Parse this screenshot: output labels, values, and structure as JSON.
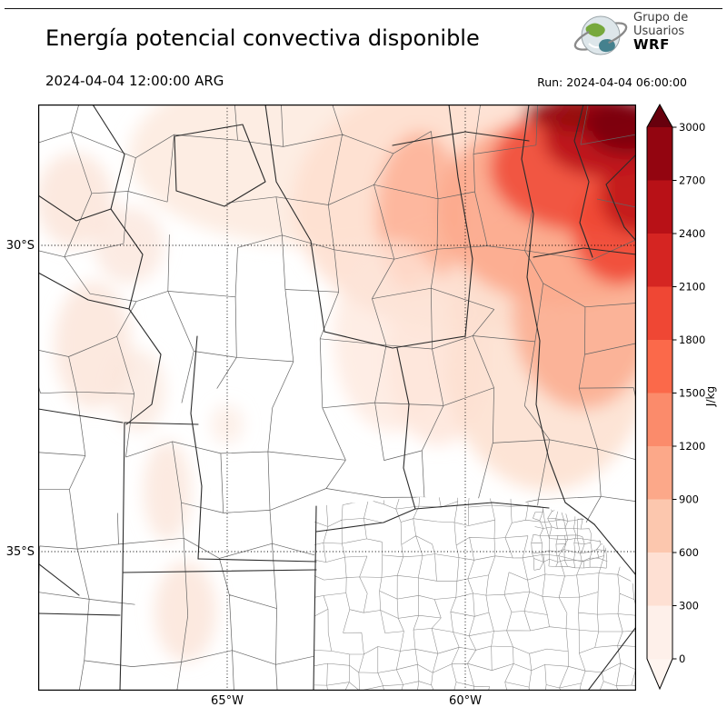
{
  "header": {
    "title": "Energía potencial convectiva disponible",
    "valid_time": "2024-04-04 12:00:00 ARG",
    "run_label": "Run: 2024-04-04 06:00:00",
    "logo": {
      "line1": "Grupo de",
      "line2": "Usuarios",
      "line3": "WRF"
    }
  },
  "map": {
    "lat_ticks": [
      {
        "label": "30°S"
      },
      {
        "label": "35°S"
      }
    ],
    "lon_ticks": [
      {
        "label": "65°W"
      },
      {
        "label": "60°W"
      }
    ]
  },
  "colorbar": {
    "unit": "J/kg",
    "min": 0,
    "max": 3000,
    "step": 300,
    "tick_labels": [
      "3000",
      "2700",
      "2400",
      "2100",
      "1800",
      "1500",
      "1200",
      "900",
      "600",
      "300",
      "0"
    ],
    "segments_top_to_bottom": [
      "#930510",
      "#b81117",
      "#d52522",
      "#ef4734",
      "#fb694a",
      "#fb8b6b",
      "#fca889",
      "#fcc7ae",
      "#fee0d3",
      "#fef0ea"
    ],
    "over_arrow_color": "#67000d",
    "under_arrow_color": "#fff5f0"
  },
  "chart_data": {
    "type": "heatmap",
    "title": "Energía potencial convectiva disponible",
    "units": "J/kg",
    "colormap": "Reds (discrete)",
    "levels": [
      0,
      300,
      600,
      900,
      1200,
      1500,
      1800,
      2100,
      2400,
      2700,
      3000
    ],
    "x_axis": {
      "ticks": [
        "65°W",
        "60°W"
      ]
    },
    "y_axis": {
      "ticks": [
        "30°S",
        "35°S"
      ]
    },
    "legend_position": "right vertical colorbar with over/under arrows",
    "field_summary": [
      {
        "region": "far northeast corner (north of 30°S, east of ~59°W)",
        "cape_jkg": "1800-3000+"
      },
      {
        "region": "northeast quadrant band",
        "cape_jkg": "900-1800"
      },
      {
        "region": "north-central strip near top edge",
        "cape_jkg": "300-900"
      },
      {
        "region": "east-central area (~30-33°S near 59-61°W)",
        "cape_jkg": "300-600"
      },
      {
        "region": "scattered patches along western foothills",
        "cape_jkg": "0-300"
      },
      {
        "region": "center, south and southeast of map",
        "cape_jkg": "~0"
      }
    ]
  }
}
